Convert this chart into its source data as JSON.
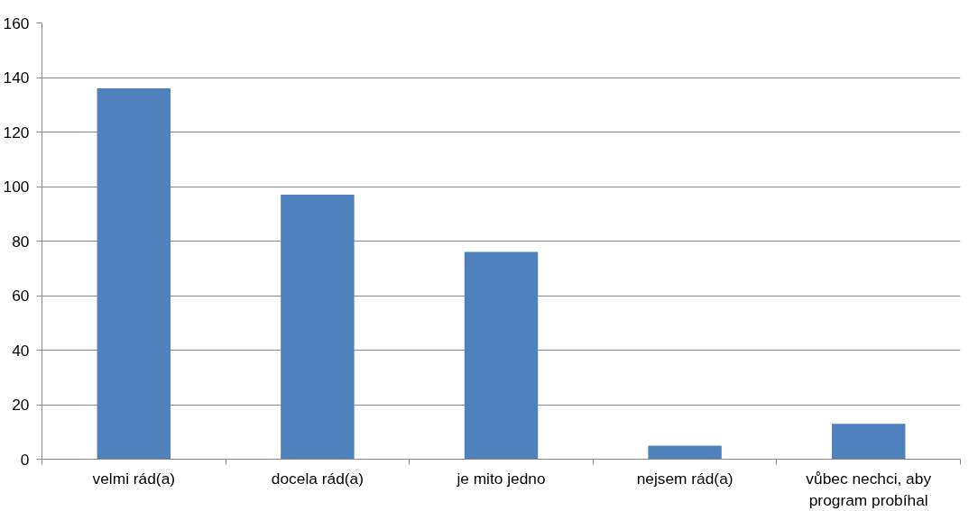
{
  "chart_data": {
    "type": "bar",
    "categories": [
      "velmi rád(a)",
      "docela rád(a)",
      "je mito jedno",
      "nejsem rád(a)",
      "vůbec nechci, aby program probíhal"
    ],
    "values": [
      136,
      97,
      76,
      5,
      13
    ],
    "color": "#4f81bd",
    "ylim": [
      0,
      160
    ],
    "yticks": [
      0,
      20,
      40,
      60,
      80,
      100,
      120,
      140,
      160
    ],
    "grid": "y"
  }
}
